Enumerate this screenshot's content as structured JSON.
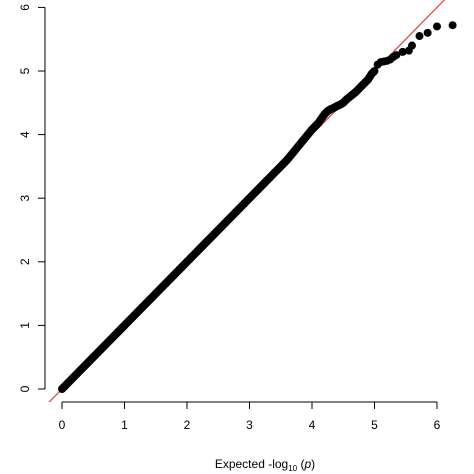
{
  "chart_data": {
    "type": "scatter",
    "title": "",
    "xlabel": "Expected -log10 (p)",
    "xlabel_parts": {
      "main": "Expected -log",
      "sub": "10",
      "paren_open": " (",
      "italic": "p",
      "paren_close": ")"
    },
    "ylabel": "",
    "xlim": [
      0,
      6.2
    ],
    "ylim": [
      0,
      6.05
    ],
    "xticks": [
      0,
      1,
      2,
      3,
      4,
      5,
      6
    ],
    "yticks": [
      0,
      1,
      2,
      3,
      4,
      5,
      6
    ],
    "xtick_labels": [
      "0",
      "1",
      "2",
      "3",
      "4",
      "5",
      "6"
    ],
    "ytick_labels": [
      "0",
      "1",
      "2",
      "3",
      "4",
      "5",
      "6"
    ],
    "reference_line": {
      "type": "y=x",
      "color": "#e0403a"
    },
    "point_color": "#000000",
    "grid": false,
    "legend": "none",
    "series": [
      {
        "x": [
          0.0,
          0.05,
          0.1,
          0.15,
          0.2,
          0.25,
          0.3,
          0.35,
          0.4,
          0.45,
          0.5,
          0.55,
          0.6,
          0.65,
          0.7,
          0.75,
          0.8,
          0.85,
          0.9,
          0.95,
          1.0,
          1.05,
          1.1,
          1.15,
          1.2,
          1.25,
          1.3,
          1.35,
          1.4,
          1.45,
          1.5,
          1.55,
          1.6,
          1.65,
          1.7,
          1.75,
          1.8,
          1.85,
          1.9,
          1.95,
          2.0,
          2.05,
          2.1,
          2.15,
          2.2,
          2.25,
          2.3,
          2.35,
          2.4,
          2.45,
          2.5,
          2.55,
          2.6,
          2.65,
          2.7,
          2.75,
          2.8,
          2.85,
          2.9,
          2.95,
          3.0,
          3.05,
          3.1,
          3.15,
          3.2,
          3.25,
          3.3,
          3.35,
          3.4,
          3.45,
          3.5,
          3.55,
          3.6,
          3.65,
          3.7,
          3.75,
          3.8,
          3.85,
          3.9,
          3.95,
          4.0,
          4.05,
          4.1,
          4.15,
          4.2,
          4.25,
          4.3,
          4.35,
          4.4,
          4.45,
          4.5,
          4.55,
          4.6,
          4.65,
          4.7,
          4.75,
          4.8,
          4.85,
          4.9,
          4.95,
          5.0,
          5.05,
          5.1,
          5.15,
          5.2,
          5.25,
          5.3,
          5.35,
          5.45,
          5.55,
          5.6,
          5.72,
          5.85,
          6.0,
          6.25
        ],
        "y": [
          0.0,
          0.05,
          0.1,
          0.15,
          0.2,
          0.25,
          0.3,
          0.35,
          0.4,
          0.45,
          0.5,
          0.55,
          0.6,
          0.65,
          0.7,
          0.75,
          0.8,
          0.85,
          0.9,
          0.95,
          1.0,
          1.05,
          1.1,
          1.15,
          1.2,
          1.25,
          1.3,
          1.35,
          1.4,
          1.45,
          1.5,
          1.55,
          1.6,
          1.65,
          1.7,
          1.75,
          1.8,
          1.85,
          1.9,
          1.95,
          2.0,
          2.05,
          2.1,
          2.15,
          2.2,
          2.25,
          2.3,
          2.35,
          2.4,
          2.45,
          2.5,
          2.55,
          2.6,
          2.65,
          2.7,
          2.75,
          2.8,
          2.85,
          2.9,
          2.95,
          3.0,
          3.05,
          3.1,
          3.15,
          3.2,
          3.25,
          3.3,
          3.35,
          3.4,
          3.45,
          3.5,
          3.55,
          3.6,
          3.66,
          3.72,
          3.78,
          3.84,
          3.9,
          3.96,
          4.02,
          4.08,
          4.13,
          4.18,
          4.25,
          4.32,
          4.37,
          4.4,
          4.42,
          4.45,
          4.47,
          4.5,
          4.55,
          4.59,
          4.63,
          4.67,
          4.72,
          4.77,
          4.82,
          4.87,
          4.95,
          5.0,
          5.1,
          5.14,
          5.15,
          5.16,
          5.18,
          5.22,
          5.25,
          5.3,
          5.32,
          5.4,
          5.55,
          5.6,
          5.7,
          5.72
        ]
      }
    ]
  }
}
